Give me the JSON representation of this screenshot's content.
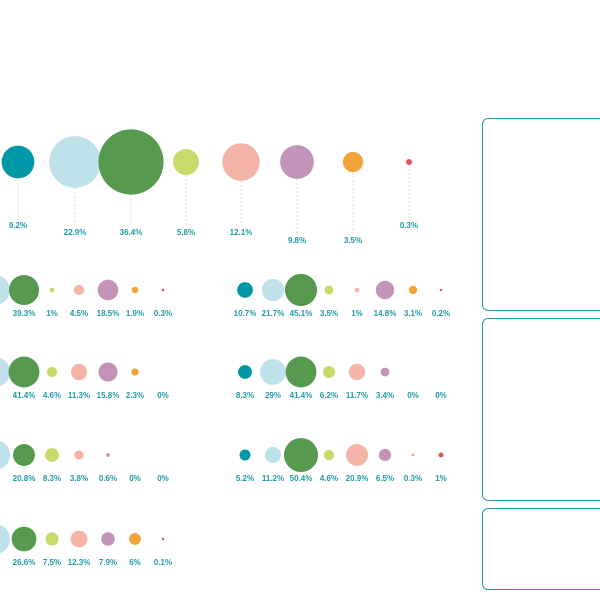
{
  "chart_data": {
    "type": "bubble",
    "colors": [
      "#0097a7",
      "#bfe2ea",
      "#57994f",
      "#c9d96a",
      "#f4b4a7",
      "#c394b8",
      "#f2a33a",
      "#e0525a"
    ],
    "top_row": {
      "values": [
        9.2,
        22.9,
        36.4,
        5.8,
        12.1,
        9.8,
        3.5,
        0.3
      ],
      "labels": [
        "9.2%",
        "22.9%",
        "36.4%",
        "5.8%",
        "12.1%",
        "9.8%",
        "3.5%",
        "0.3%"
      ]
    },
    "small_multiples": [
      {
        "values": [
          null,
          39.3,
          1,
          4.5,
          18.5,
          1.9,
          0.3
        ],
        "labels": [
          "%",
          "39.3%",
          "1%",
          "4.5%",
          "18.5%",
          "1.9%",
          "0.3%"
        ]
      },
      {
        "values": [
          10.7,
          21.7,
          45.1,
          3.5,
          1,
          14.8,
          3.1,
          0.2
        ],
        "labels": [
          "10.7%",
          "21.7%",
          "45.1%",
          "3.5%",
          "1%",
          "14.8%",
          "3.1%",
          "0.2%"
        ]
      },
      {
        "values": [
          null,
          41.4,
          4.6,
          11.3,
          15.8,
          2.3,
          0
        ],
        "labels": [
          "%",
          "41.4%",
          "4.6%",
          "11.3%",
          "15.8%",
          "2.3%",
          "0%"
        ]
      },
      {
        "values": [
          8.3,
          29,
          41.4,
          6.2,
          11.7,
          3.4,
          0,
          0
        ],
        "labels": [
          "8.3%",
          "29%",
          "41.4%",
          "6.2%",
          "11.7%",
          "3.4%",
          "0%",
          "0%"
        ]
      },
      {
        "values": [
          null,
          20.8,
          8.3,
          3.8,
          0.6,
          0,
          0
        ],
        "labels": [
          "%",
          "20.8%",
          "8.3%",
          "3.8%",
          "0.6%",
          "0%",
          "0%"
        ]
      },
      {
        "values": [
          5.2,
          11.2,
          50.4,
          4.6,
          20.9,
          6.5,
          0.3,
          1
        ],
        "labels": [
          "5.2%",
          "11.2%",
          "50.4%",
          "4.6%",
          "20.9%",
          "6.5%",
          "0.3%",
          "1%"
        ]
      },
      {
        "values": [
          null,
          26.6,
          7.5,
          12.3,
          7.9,
          6,
          0.1
        ],
        "labels": [
          "%",
          "26.6%",
          "7.5%",
          "12.3%",
          "7.9%",
          "6%",
          "0.1%"
        ]
      }
    ]
  },
  "panels": [
    {
      "name": "panel-top"
    },
    {
      "name": "panel-middle"
    },
    {
      "name": "panel-bottom"
    }
  ]
}
